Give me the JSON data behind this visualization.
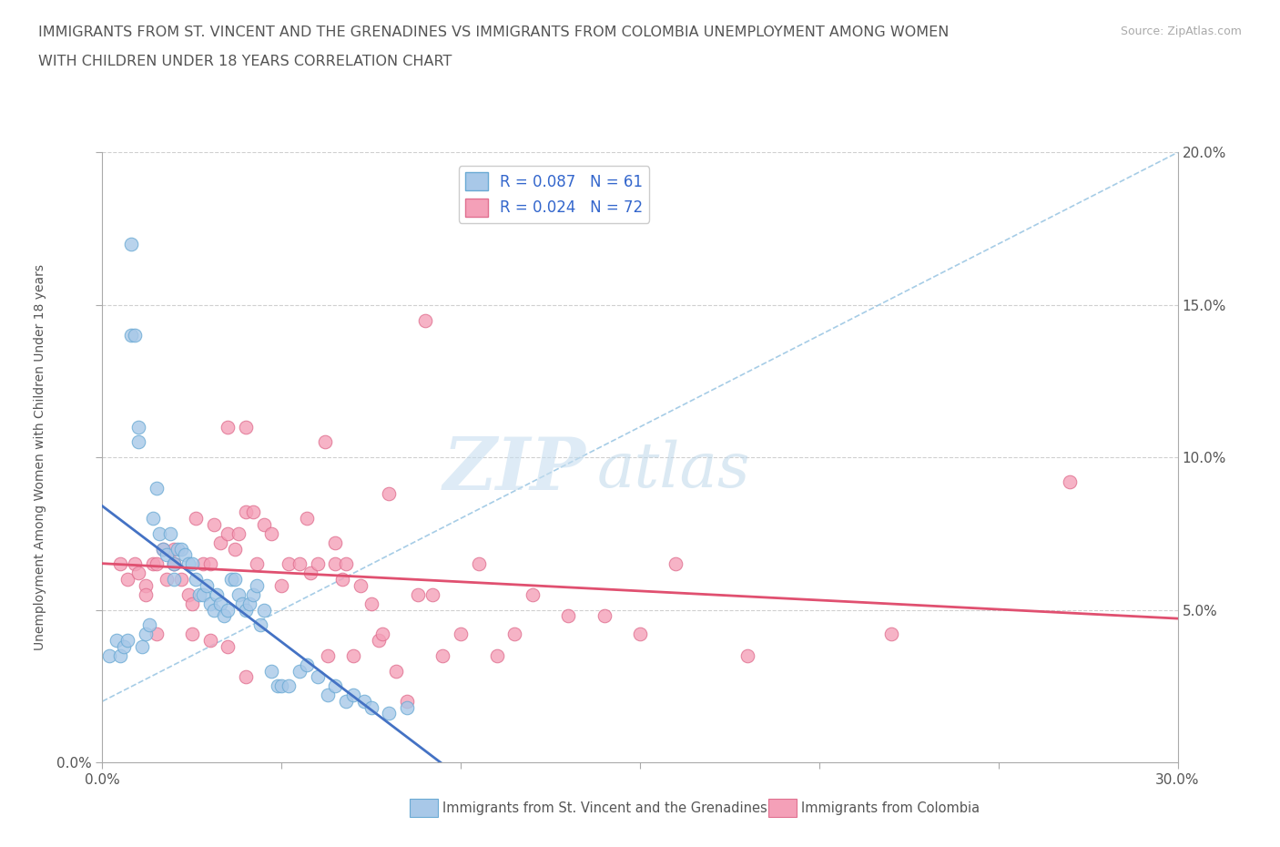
{
  "title_line1": "IMMIGRANTS FROM ST. VINCENT AND THE GRENADINES VS IMMIGRANTS FROM COLOMBIA UNEMPLOYMENT AMONG WOMEN",
  "title_line2": "WITH CHILDREN UNDER 18 YEARS CORRELATION CHART",
  "source": "Source: ZipAtlas.com",
  "ylabel": "Unemployment Among Women with Children Under 18 years",
  "xlim": [
    0.0,
    0.3
  ],
  "ylim": [
    0.0,
    0.2
  ],
  "xticks": [
    0.0,
    0.05,
    0.1,
    0.15,
    0.2,
    0.25,
    0.3
  ],
  "xticklabels": [
    "0.0%",
    "",
    "",
    "",
    "",
    "",
    "30.0%"
  ],
  "yticks": [
    0.0,
    0.05,
    0.1,
    0.15,
    0.2
  ],
  "series1_color": "#a8c8e8",
  "series1_edge": "#6aaad4",
  "series2_color": "#f4a0b8",
  "series2_edge": "#e07090",
  "trendline1_color": "#4472c4",
  "trendline2_color": "#e05070",
  "R1": 0.087,
  "N1": 61,
  "R2": 0.024,
  "N2": 72,
  "legend_label1": "Immigrants from St. Vincent and the Grenadines",
  "legend_label2": "Immigrants from Colombia",
  "watermark_zip": "ZIP",
  "watermark_atlas": "atlas",
  "background_color": "#ffffff",
  "series1_x": [
    0.002,
    0.004,
    0.005,
    0.006,
    0.007,
    0.008,
    0.008,
    0.009,
    0.01,
    0.01,
    0.011,
    0.012,
    0.013,
    0.014,
    0.015,
    0.016,
    0.017,
    0.018,
    0.019,
    0.02,
    0.02,
    0.021,
    0.022,
    0.023,
    0.024,
    0.025,
    0.026,
    0.027,
    0.028,
    0.029,
    0.03,
    0.031,
    0.032,
    0.033,
    0.034,
    0.035,
    0.036,
    0.037,
    0.038,
    0.039,
    0.04,
    0.041,
    0.042,
    0.043,
    0.044,
    0.045,
    0.047,
    0.049,
    0.05,
    0.052,
    0.055,
    0.057,
    0.06,
    0.063,
    0.065,
    0.068,
    0.07,
    0.073,
    0.075,
    0.08,
    0.085
  ],
  "series1_y": [
    0.035,
    0.04,
    0.035,
    0.038,
    0.04,
    0.17,
    0.14,
    0.14,
    0.11,
    0.105,
    0.038,
    0.042,
    0.045,
    0.08,
    0.09,
    0.075,
    0.07,
    0.068,
    0.075,
    0.06,
    0.065,
    0.07,
    0.07,
    0.068,
    0.065,
    0.065,
    0.06,
    0.055,
    0.055,
    0.058,
    0.052,
    0.05,
    0.055,
    0.052,
    0.048,
    0.05,
    0.06,
    0.06,
    0.055,
    0.052,
    0.05,
    0.052,
    0.055,
    0.058,
    0.045,
    0.05,
    0.03,
    0.025,
    0.025,
    0.025,
    0.03,
    0.032,
    0.028,
    0.022,
    0.025,
    0.02,
    0.022,
    0.02,
    0.018,
    0.016,
    0.018
  ],
  "series2_x": [
    0.005,
    0.007,
    0.009,
    0.01,
    0.012,
    0.014,
    0.015,
    0.017,
    0.018,
    0.02,
    0.02,
    0.022,
    0.024,
    0.025,
    0.026,
    0.028,
    0.03,
    0.031,
    0.033,
    0.035,
    0.035,
    0.037,
    0.038,
    0.04,
    0.04,
    0.042,
    0.043,
    0.045,
    0.047,
    0.05,
    0.052,
    0.055,
    0.057,
    0.058,
    0.06,
    0.062,
    0.063,
    0.065,
    0.065,
    0.067,
    0.068,
    0.07,
    0.072,
    0.075,
    0.077,
    0.078,
    0.08,
    0.082,
    0.085,
    0.088,
    0.09,
    0.092,
    0.095,
    0.1,
    0.105,
    0.11,
    0.115,
    0.12,
    0.13,
    0.14,
    0.15,
    0.16,
    0.18,
    0.22,
    0.27,
    0.012,
    0.015,
    0.02,
    0.025,
    0.03,
    0.035,
    0.04
  ],
  "series2_y": [
    0.065,
    0.06,
    0.065,
    0.062,
    0.058,
    0.065,
    0.065,
    0.07,
    0.06,
    0.065,
    0.07,
    0.06,
    0.055,
    0.052,
    0.08,
    0.065,
    0.065,
    0.078,
    0.072,
    0.11,
    0.075,
    0.07,
    0.075,
    0.11,
    0.082,
    0.082,
    0.065,
    0.078,
    0.075,
    0.058,
    0.065,
    0.065,
    0.08,
    0.062,
    0.065,
    0.105,
    0.035,
    0.065,
    0.072,
    0.06,
    0.065,
    0.035,
    0.058,
    0.052,
    0.04,
    0.042,
    0.088,
    0.03,
    0.02,
    0.055,
    0.145,
    0.055,
    0.035,
    0.042,
    0.065,
    0.035,
    0.042,
    0.055,
    0.048,
    0.048,
    0.042,
    0.065,
    0.035,
    0.042,
    0.092,
    0.055,
    0.042,
    0.065,
    0.042,
    0.04,
    0.038,
    0.028
  ]
}
